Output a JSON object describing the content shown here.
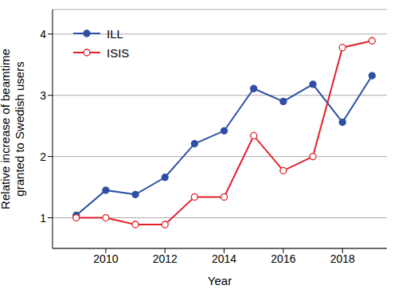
{
  "chart_data": {
    "type": "line",
    "x_label": "Year",
    "y_label": "Relative increase of beamtime granted to Swedish users",
    "x": [
      2009,
      2010,
      2011,
      2012,
      2013,
      2014,
      2015,
      2016,
      2017,
      2018,
      2019
    ],
    "series": [
      {
        "name": "ILL",
        "color": "#2e4fa3",
        "marker": "circle",
        "values": [
          1.04,
          1.45,
          1.38,
          1.66,
          2.21,
          2.42,
          3.11,
          2.9,
          3.18,
          2.56,
          3.32
        ]
      },
      {
        "name": "ISIS",
        "color": "#e0202a",
        "marker": "open_circle",
        "values": [
          1.0,
          1.0,
          0.89,
          0.89,
          1.34,
          1.34,
          2.34,
          1.77,
          2.0,
          3.78,
          3.89
        ]
      }
    ],
    "xlim": [
      2008.2,
      2019.5
    ],
    "xticks": [
      2010,
      2012,
      2014,
      2016,
      2018
    ],
    "ylim": [
      0.5,
      4.4
    ],
    "yticks": [
      1,
      2,
      3,
      4
    ],
    "grid": true,
    "legend": "upper left"
  }
}
